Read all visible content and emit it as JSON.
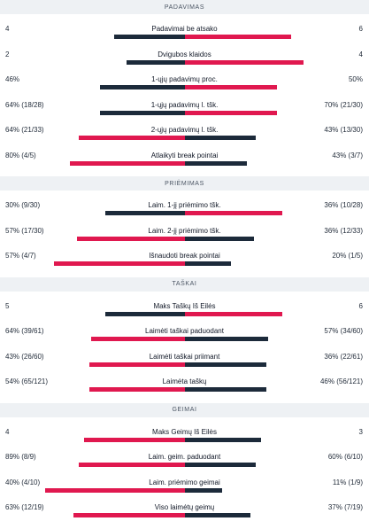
{
  "colors": {
    "dark": "#1c2a3a",
    "red": "#e0184f",
    "header_bg": "#eef1f4"
  },
  "sections": [
    {
      "title": "PADAVIMAS",
      "rows": [
        {
          "label": "Padavimai be atsako",
          "left": "4",
          "right": "6",
          "left_frac": 0.4,
          "right_frac": 0.6,
          "left_color": "dark",
          "right_color": "red"
        },
        {
          "label": "Dvigubos klaidos",
          "left": "2",
          "right": "4",
          "left_frac": 0.33,
          "right_frac": 0.67,
          "left_color": "dark",
          "right_color": "red"
        },
        {
          "label": "1-ųjų padavimų proc.",
          "left": "46%",
          "right": "50%",
          "left_frac": 0.48,
          "right_frac": 0.52,
          "left_color": "dark",
          "right_color": "red"
        },
        {
          "label": "1-ųjų padavimų l. tšk.",
          "left": "64% (18/28)",
          "right": "70% (21/30)",
          "left_frac": 0.48,
          "right_frac": 0.52,
          "left_color": "dark",
          "right_color": "red"
        },
        {
          "label": "2-ųjų padavimų l. tšk.",
          "left": "64% (21/33)",
          "right": "43% (13/30)",
          "left_frac": 0.6,
          "right_frac": 0.4,
          "left_color": "red",
          "right_color": "dark"
        },
        {
          "label": "Atlaikyti break pointai",
          "left": "80% (4/5)",
          "right": "43% (3/7)",
          "left_frac": 0.65,
          "right_frac": 0.35,
          "left_color": "red",
          "right_color": "dark"
        }
      ]
    },
    {
      "title": "PRIĖMIMAS",
      "rows": [
        {
          "label": "Laim. 1-jį priėmimo tšk.",
          "left": "30% (9/30)",
          "right": "36% (10/28)",
          "left_frac": 0.45,
          "right_frac": 0.55,
          "left_color": "dark",
          "right_color": "red"
        },
        {
          "label": "Laim. 2-jį priėmimo tšk.",
          "left": "57% (17/30)",
          "right": "36% (12/33)",
          "left_frac": 0.61,
          "right_frac": 0.39,
          "left_color": "red",
          "right_color": "dark"
        },
        {
          "label": "Išnaudoti break pointai",
          "left": "57% (4/7)",
          "right": "20% (1/5)",
          "left_frac": 0.74,
          "right_frac": 0.26,
          "left_color": "red",
          "right_color": "dark"
        }
      ]
    },
    {
      "title": "TAŠKAI",
      "rows": [
        {
          "label": "Maks Taškų Iš Eilės",
          "left": "5",
          "right": "6",
          "left_frac": 0.45,
          "right_frac": 0.55,
          "left_color": "dark",
          "right_color": "red"
        },
        {
          "label": "Laimėti taškai paduodant",
          "left": "64% (39/61)",
          "right": "57% (34/60)",
          "left_frac": 0.53,
          "right_frac": 0.47,
          "left_color": "red",
          "right_color": "dark"
        },
        {
          "label": "Laimėti taškai priimant",
          "left": "43% (26/60)",
          "right": "36% (22/61)",
          "left_frac": 0.54,
          "right_frac": 0.46,
          "left_color": "red",
          "right_color": "dark"
        },
        {
          "label": "Laimėta taškų",
          "left": "54% (65/121)",
          "right": "46% (56/121)",
          "left_frac": 0.54,
          "right_frac": 0.46,
          "left_color": "red",
          "right_color": "dark"
        }
      ]
    },
    {
      "title": "GEIMAI",
      "rows": [
        {
          "label": "Maks Geimų Iš Eilės",
          "left": "4",
          "right": "3",
          "left_frac": 0.57,
          "right_frac": 0.43,
          "left_color": "red",
          "right_color": "dark"
        },
        {
          "label": "Laim. geim. paduodant",
          "left": "89% (8/9)",
          "right": "60% (6/10)",
          "left_frac": 0.6,
          "right_frac": 0.4,
          "left_color": "red",
          "right_color": "dark"
        },
        {
          "label": "Laim. priėmimo geimai",
          "left": "40% (4/10)",
          "right": "11% (1/9)",
          "left_frac": 0.79,
          "right_frac": 0.21,
          "left_color": "red",
          "right_color": "dark"
        },
        {
          "label": "Viso laimėtų geimų",
          "left": "63% (12/19)",
          "right": "37% (7/19)",
          "left_frac": 0.63,
          "right_frac": 0.37,
          "left_color": "red",
          "right_color": "dark"
        }
      ]
    }
  ]
}
